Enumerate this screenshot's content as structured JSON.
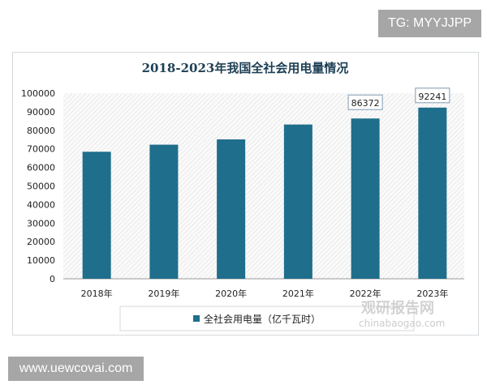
{
  "watermarks": {
    "top": "TG: MYYJJPP",
    "bottom": "www.uewcovai.com",
    "logo_cn": "观研报告网",
    "logo_en": "chinabaogao.com"
  },
  "chart_data": {
    "type": "bar",
    "title": "2018-2023年我国全社会用电量情况",
    "categories": [
      "2018年",
      "2019年",
      "2020年",
      "2021年",
      "2022年",
      "2023年"
    ],
    "series": [
      {
        "name": "全社会用电量（亿千瓦时）",
        "values": [
          68449,
          72255,
          75110,
          83128,
          86372,
          92241
        ],
        "color": "#1f6e8c"
      }
    ],
    "data_labels": {
      "4": "86372",
      "5": "92241"
    },
    "ylim": [
      0,
      100000
    ],
    "yticks": [
      0,
      10000,
      20000,
      30000,
      40000,
      50000,
      60000,
      70000,
      80000,
      90000,
      100000
    ],
    "legend": "bottom",
    "grid": false,
    "plot_background": "hatched"
  }
}
